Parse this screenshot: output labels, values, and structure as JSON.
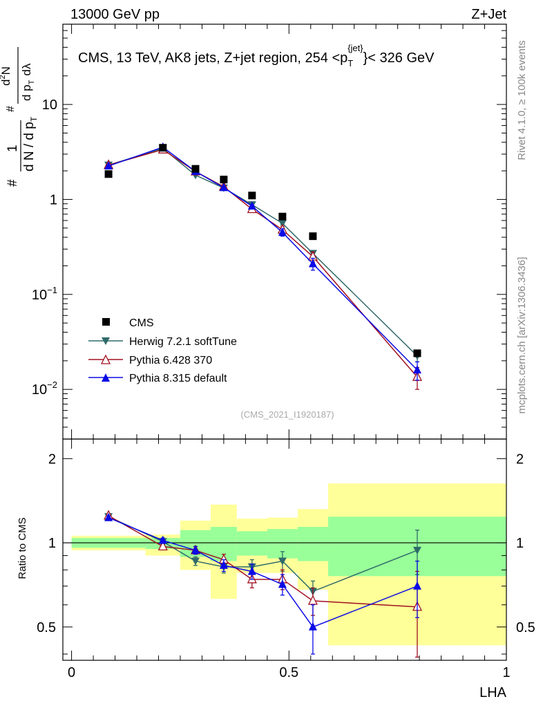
{
  "header": {
    "energy_label": "13000 GeV pp",
    "process_label": "Z+Jet"
  },
  "side_labels": {
    "rivet": "Rivet 4.1.0, ≥ 100k events",
    "mcplots": "mcplots.cern.ch [arXiv:1306.3436]"
  },
  "watermark": "(CMS_2021_I1920187)",
  "chart_data": [
    {
      "type": "scatter",
      "panel": "main",
      "title_parts": {
        "prefix": "CMS, 13 TeV, AK8 jets, Z+jet region, 254 <p",
        "sub": "T",
        "sup": "{jet}",
        "suffix": "}< 326 GeV"
      },
      "ylabel_parts": {
        "a": "#",
        "b": "1",
        "c": "d N / d p",
        "d": "T",
        "e": "#",
        "f": "d",
        "g": "2",
        "h": "N",
        "i": "d p",
        "j": "T",
        "k": "dλ"
      },
      "yscale": "log",
      "ylim": [
        0.003,
        70
      ],
      "xlim": [
        -0.02,
        1.0
      ],
      "ytick_labels": [
        {
          "value": 0.01,
          "base": "10",
          "exp": "−2"
        },
        {
          "value": 0.1,
          "base": "10",
          "exp": "−1"
        },
        {
          "value": 1,
          "base": "1",
          "exp": ""
        },
        {
          "value": 10,
          "base": "10",
          "exp": ""
        }
      ],
      "legend_position": "bottom-left",
      "series": [
        {
          "name": "CMS",
          "color": "#000000",
          "marker": "square",
          "x": [
            0.085,
            0.21,
            0.285,
            0.35,
            0.415,
            0.485,
            0.555,
            0.795
          ],
          "y": [
            1.85,
            3.5,
            2.1,
            1.62,
            1.1,
            0.66,
            0.41,
            0.024
          ]
        },
        {
          "name": "Herwig 7.2.1 softTune",
          "color": "#2f6a6a",
          "marker": "triangle-down",
          "x": [
            0.085,
            0.21,
            0.285,
            0.35,
            0.415,
            0.485,
            0.555,
            0.795
          ],
          "y": [
            2.3,
            3.45,
            1.8,
            1.32,
            0.88,
            0.56,
            0.27,
            0.0225
          ],
          "yerr": [
            0.03,
            0.05,
            0.03,
            0.03,
            0.02,
            0.02,
            0.02,
            0.003
          ]
        },
        {
          "name": "Pythia 6.428 370",
          "color": "#a01020",
          "marker": "triangle-up-open",
          "x": [
            0.085,
            0.21,
            0.285,
            0.35,
            0.415,
            0.485,
            0.555,
            0.795
          ],
          "y": [
            2.3,
            3.35,
            1.97,
            1.36,
            0.79,
            0.48,
            0.25,
            0.0135
          ],
          "yerr": [
            0.04,
            0.05,
            0.04,
            0.04,
            0.03,
            0.04,
            0.03,
            0.0035
          ]
        },
        {
          "name": "Pythia 8.315 default",
          "color": "#0a0ae6",
          "marker": "triangle-up",
          "x": [
            0.085,
            0.21,
            0.285,
            0.35,
            0.415,
            0.485,
            0.555,
            0.795
          ],
          "y": [
            2.25,
            3.55,
            1.97,
            1.33,
            0.85,
            0.45,
            0.21,
            0.016
          ],
          "yerr": [
            0.04,
            0.05,
            0.04,
            0.04,
            0.03,
            0.04,
            0.03,
            0.0035
          ]
        }
      ]
    },
    {
      "type": "scatter",
      "panel": "ratio",
      "ylabel": "Ratio to CMS",
      "xlabel": "LHA",
      "yscale": "log",
      "ylim": [
        0.38,
        2.35
      ],
      "xlim": [
        -0.02,
        1.0
      ],
      "reference_line": 1,
      "ytick_labels": [
        0.5,
        1,
        2
      ],
      "xtick_labels": [
        {
          "value": 0,
          "label": "0"
        },
        {
          "value": 0.5,
          "label": "0.5"
        },
        {
          "value": 1,
          "label": "1"
        }
      ],
      "bands": [
        {
          "x0": 0.0,
          "x1": 0.17,
          "yellow": [
            0.94,
            1.06
          ],
          "green": [
            0.96,
            1.04
          ]
        },
        {
          "x0": 0.17,
          "x1": 0.25,
          "yellow": [
            0.9,
            1.07
          ],
          "green": [
            0.95,
            1.04
          ]
        },
        {
          "x0": 0.25,
          "x1": 0.32,
          "yellow": [
            0.8,
            1.2
          ],
          "green": [
            0.89,
            1.11
          ]
        },
        {
          "x0": 0.32,
          "x1": 0.38,
          "yellow": [
            0.63,
            1.37
          ],
          "green": [
            0.86,
            1.14
          ]
        },
        {
          "x0": 0.38,
          "x1": 0.45,
          "yellow": [
            0.78,
            1.22
          ],
          "green": [
            0.9,
            1.1
          ]
        },
        {
          "x0": 0.45,
          "x1": 0.52,
          "yellow": [
            0.78,
            1.23
          ],
          "green": [
            0.88,
            1.12
          ]
        },
        {
          "x0": 0.52,
          "x1": 0.59,
          "yellow": [
            0.68,
            1.32
          ],
          "green": [
            0.86,
            1.14
          ]
        },
        {
          "x0": 0.59,
          "x1": 1.0,
          "yellow": [
            0.43,
            1.63
          ],
          "green": [
            0.76,
            1.24
          ]
        }
      ],
      "series": [
        {
          "name": "Herwig 7.2.1 softTune",
          "color": "#2f6a6a",
          "marker": "triangle-down",
          "x": [
            0.085,
            0.21,
            0.285,
            0.35,
            0.415,
            0.485,
            0.555,
            0.795
          ],
          "y": [
            1.24,
            1.01,
            0.86,
            0.82,
            0.82,
            0.86,
            0.67,
            0.94
          ],
          "yerr": [
            0.02,
            0.02,
            0.03,
            0.04,
            0.05,
            0.07,
            0.06,
            0.17
          ]
        },
        {
          "name": "Pythia 6.428 370",
          "color": "#a01020",
          "marker": "triangle-up-open",
          "x": [
            0.085,
            0.21,
            0.285,
            0.35,
            0.415,
            0.485,
            0.555,
            0.795
          ],
          "y": [
            1.25,
            0.97,
            0.94,
            0.87,
            0.74,
            0.74,
            0.62,
            0.59
          ],
          "yerr": [
            0.02,
            0.02,
            0.03,
            0.04,
            0.05,
            0.06,
            0.07,
            0.2
          ]
        },
        {
          "name": "Pythia 8.315 default",
          "color": "#0a0ae6",
          "marker": "triangle-up",
          "x": [
            0.085,
            0.21,
            0.285,
            0.35,
            0.415,
            0.485,
            0.555,
            0.795
          ],
          "y": [
            1.23,
            1.02,
            0.94,
            0.83,
            0.79,
            0.71,
            0.5,
            0.7
          ],
          "yerr": [
            0.02,
            0.02,
            0.03,
            0.04,
            0.05,
            0.06,
            0.1,
            0.16
          ]
        }
      ]
    }
  ]
}
